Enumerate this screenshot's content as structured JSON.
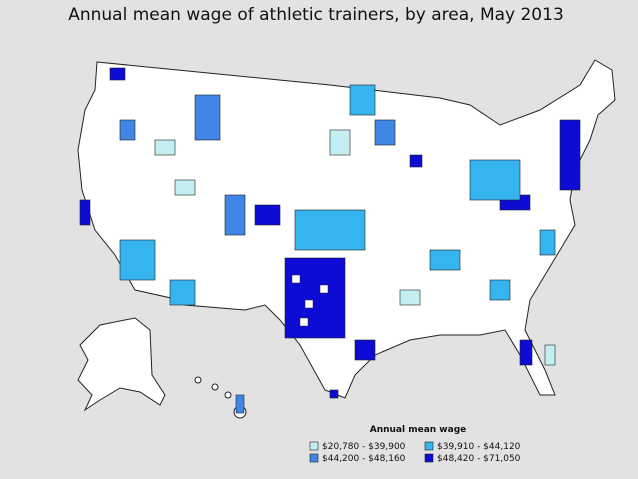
{
  "title": "Annual mean wage of athletic trainers, by area, May 2013",
  "legend": {
    "title": "Annual mean wage",
    "items": [
      {
        "label": "$20,780 - $39,900",
        "color": "#c4eff2"
      },
      {
        "label": "$44,200 - $48,160",
        "color": "#3f86e6"
      },
      {
        "label": "$39,910 - $44,120",
        "color": "#35b4f0"
      },
      {
        "label": "$48,420 - $71,050",
        "color": "#0c0cd4"
      }
    ]
  }
}
